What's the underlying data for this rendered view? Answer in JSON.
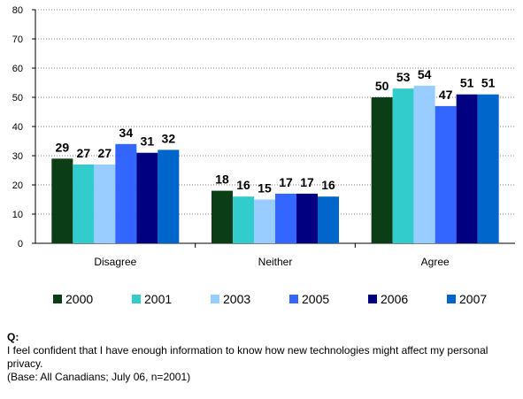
{
  "chart_data": {
    "type": "bar",
    "categories": [
      "Disagree",
      "Neither",
      "Agree"
    ],
    "series": [
      {
        "name": "2000",
        "color": "#0b3d17",
        "values": [
          29,
          18,
          50
        ]
      },
      {
        "name": "2001",
        "color": "#33cccc",
        "values": [
          27,
          16,
          53
        ]
      },
      {
        "name": "2003",
        "color": "#99ccff",
        "values": [
          27,
          15,
          54
        ]
      },
      {
        "name": "2005",
        "color": "#3366ff",
        "values": [
          34,
          17,
          47
        ]
      },
      {
        "name": "2006",
        "color": "#000080",
        "values": [
          31,
          17,
          51
        ]
      },
      {
        "name": "2007",
        "color": "#0066cc",
        "values": [
          32,
          16,
          51
        ]
      }
    ],
    "yticks": [
      0,
      10,
      20,
      30,
      40,
      50,
      60,
      70,
      80
    ],
    "ylim": [
      0,
      80
    ],
    "grid": true,
    "legend": "bottom",
    "xlabel": "",
    "ylabel": "",
    "title": ""
  },
  "footnote": {
    "q_label": "Q:",
    "question": "I feel confident that I have enough information to know how new technologies might affect my personal privacy.",
    "base": "(Base: All Canadians; July 06, n=2001)"
  }
}
